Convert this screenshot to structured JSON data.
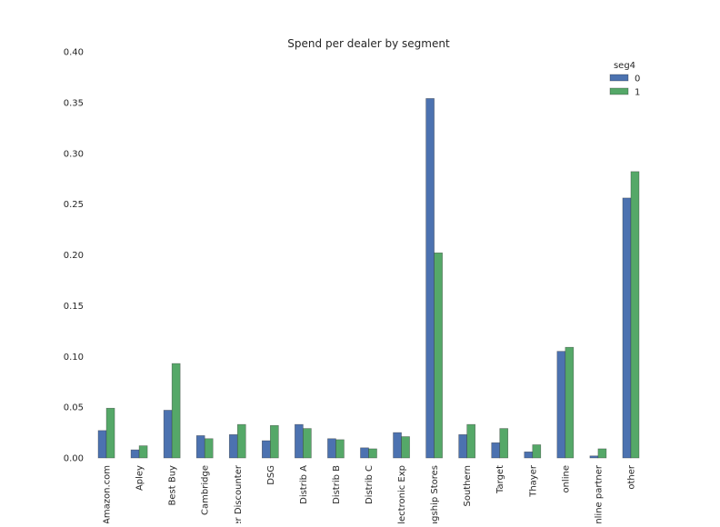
{
  "chart_data": {
    "type": "bar",
    "title": "Spend per dealer by segment",
    "xlabel": "",
    "ylabel": "",
    "ylim": [
      0,
      0.4
    ],
    "yticks": [
      "0.00",
      "0.05",
      "0.10",
      "0.15",
      "0.20",
      "0.25",
      "0.30",
      "0.35",
      "0.40"
    ],
    "grid": false,
    "legend": {
      "title": "seg4",
      "placement": "top-right"
    },
    "categories": [
      "Amazon.com",
      "Apley",
      "Best Buy",
      "Cambridge",
      "Power Discounter",
      "DSG",
      "Distrib A",
      "Distrib B",
      "Distrib C",
      "Electronic Exp",
      "Flagship Stores",
      "Southern",
      "Target",
      "Thayer",
      "online",
      "online partner",
      "other"
    ],
    "series": [
      {
        "name": "0",
        "color": "#4c72b0",
        "values": [
          0.027,
          0.008,
          0.047,
          0.022,
          0.023,
          0.017,
          0.033,
          0.019,
          0.01,
          0.025,
          0.354,
          0.023,
          0.015,
          0.006,
          0.105,
          0.002,
          0.256
        ]
      },
      {
        "name": "1",
        "color": "#55a868",
        "values": [
          0.049,
          0.012,
          0.093,
          0.019,
          0.033,
          0.032,
          0.029,
          0.018,
          0.009,
          0.021,
          0.202,
          0.033,
          0.029,
          0.013,
          0.109,
          0.009,
          0.282
        ]
      }
    ]
  }
}
